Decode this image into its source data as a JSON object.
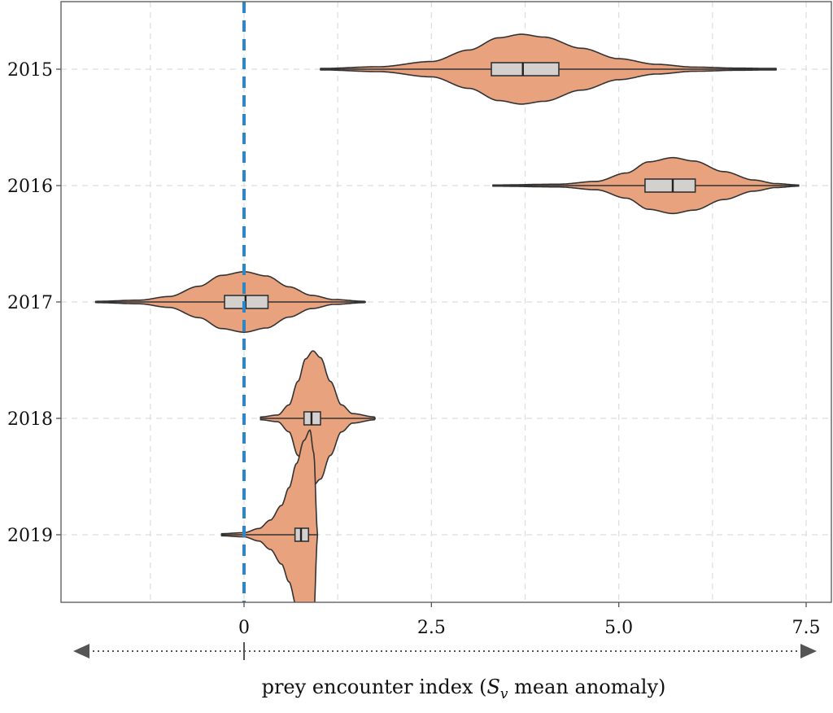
{
  "chart_data": {
    "type": "violin",
    "orientation": "horizontal",
    "categories": [
      "2015",
      "2016",
      "2017",
      "2018",
      "2019"
    ],
    "xlim": [
      -2.5,
      7.8
    ],
    "xticks": [
      0,
      2.5,
      5.0,
      7.5
    ],
    "xtick_labels": [
      "0",
      "2.5",
      "5.0",
      "7.5"
    ],
    "xlabel_prefix": "prey encounter index (",
    "xlabel_symbol": "S",
    "xlabel_subscript": "v",
    "xlabel_suffix": " mean anomaly)",
    "reference_line_x": 0,
    "grid": true,
    "colors": {
      "violin_fill": "#E9A27E",
      "violin_edge": "#333333",
      "box_fill": "#D3D0CE",
      "reference_line": "#2F86C4",
      "grid": "#DDDDDD",
      "axis": "#555555",
      "arrow": "#555555"
    },
    "distributions": [
      {
        "label": "2015",
        "min": 1.02,
        "max": 7.1,
        "q1": 3.3,
        "median": 3.72,
        "q3": 4.2,
        "peak": 3.7,
        "max_density_fraction": 0.15,
        "profile": [
          [
            1.02,
            0.02
          ],
          [
            1.8,
            0.07
          ],
          [
            2.5,
            0.22
          ],
          [
            3.0,
            0.55
          ],
          [
            3.4,
            0.9
          ],
          [
            3.7,
            1.0
          ],
          [
            4.0,
            0.92
          ],
          [
            4.5,
            0.6
          ],
          [
            5.0,
            0.3
          ],
          [
            5.5,
            0.14
          ],
          [
            6.0,
            0.06
          ],
          [
            6.6,
            0.03
          ],
          [
            7.1,
            0.02
          ]
        ]
      },
      {
        "label": "2016",
        "min": 3.32,
        "max": 7.4,
        "q1": 5.35,
        "median": 5.72,
        "q3": 6.02,
        "peak": 5.72,
        "max_density_fraction": 0.12,
        "profile": [
          [
            3.32,
            0.02
          ],
          [
            4.2,
            0.05
          ],
          [
            4.7,
            0.15
          ],
          [
            5.1,
            0.45
          ],
          [
            5.4,
            0.85
          ],
          [
            5.72,
            1.0
          ],
          [
            6.0,
            0.88
          ],
          [
            6.4,
            0.5
          ],
          [
            6.8,
            0.2
          ],
          [
            7.1,
            0.07
          ],
          [
            7.4,
            0.02
          ]
        ]
      },
      {
        "label": "2017",
        "min": -1.98,
        "max": 1.62,
        "q1": -0.26,
        "median": 0.02,
        "q3": 0.32,
        "peak": 0.0,
        "max_density_fraction": 0.13,
        "profile": [
          [
            -1.98,
            0.02
          ],
          [
            -1.4,
            0.06
          ],
          [
            -1.0,
            0.18
          ],
          [
            -0.6,
            0.52
          ],
          [
            -0.3,
            0.88
          ],
          [
            0.0,
            1.0
          ],
          [
            0.3,
            0.86
          ],
          [
            0.6,
            0.5
          ],
          [
            0.9,
            0.22
          ],
          [
            1.2,
            0.08
          ],
          [
            1.62,
            0.02
          ]
        ]
      },
      {
        "label": "2018",
        "min": 0.22,
        "max": 1.75,
        "q1": 0.8,
        "median": 0.9,
        "q3": 1.02,
        "peak": 0.92,
        "max_density_fraction": 0.29,
        "profile": [
          [
            0.22,
            0.02
          ],
          [
            0.45,
            0.05
          ],
          [
            0.6,
            0.2
          ],
          [
            0.72,
            0.55
          ],
          [
            0.82,
            0.88
          ],
          [
            0.92,
            1.0
          ],
          [
            1.02,
            0.9
          ],
          [
            1.15,
            0.55
          ],
          [
            1.3,
            0.2
          ],
          [
            1.45,
            0.07
          ],
          [
            1.75,
            0.02
          ]
        ]
      },
      {
        "label": "2019",
        "min": -0.3,
        "max": 0.98,
        "q1": 0.68,
        "median": 0.76,
        "q3": 0.86,
        "peak": 0.88,
        "max_density_fraction": 0.45,
        "profile": [
          [
            -0.3,
            0.01
          ],
          [
            0.0,
            0.02
          ],
          [
            0.2,
            0.06
          ],
          [
            0.35,
            0.14
          ],
          [
            0.5,
            0.28
          ],
          [
            0.6,
            0.45
          ],
          [
            0.7,
            0.68
          ],
          [
            0.8,
            0.9
          ],
          [
            0.88,
            1.0
          ],
          [
            0.93,
            0.78
          ],
          [
            0.98,
            0.02
          ]
        ]
      }
    ]
  }
}
